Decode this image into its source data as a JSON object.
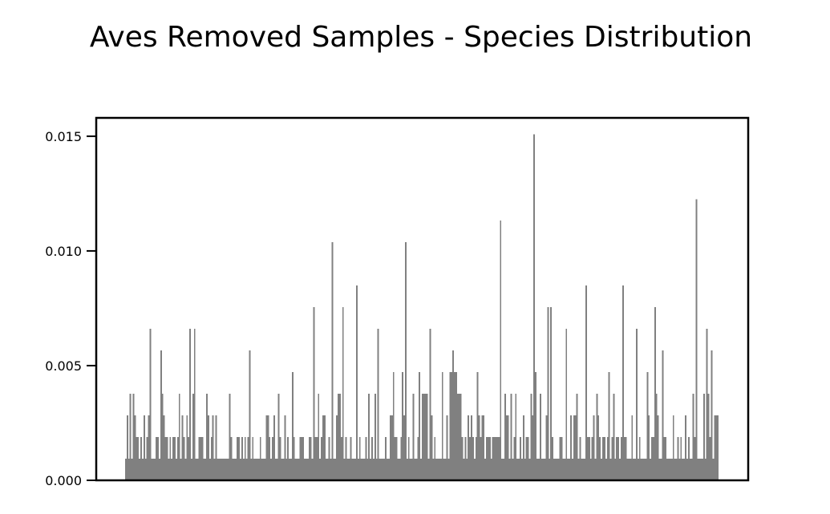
{
  "chart_data": {
    "type": "bar",
    "title": "Aves Removed Samples - Species Distribution",
    "xlabel": "",
    "ylabel": "",
    "ylim": [
      0,
      0.0158
    ],
    "yticks": [
      0.0,
      0.005,
      0.01,
      0.015
    ],
    "yticklabels": [
      "0.000",
      "0.005",
      "0.010",
      "0.015"
    ],
    "xticklabels": [],
    "grid": false,
    "legend": "none",
    "bar_color": "#808080",
    "values": [
      0.00094,
      0.00283,
      0.00094,
      0.00377,
      0.00094,
      0.00377,
      0.00283,
      0.00189,
      0.00189,
      0.00094,
      0.00189,
      0.00094,
      0.00283,
      0.00094,
      0.00189,
      0.00283,
      0.0066,
      0.00094,
      0.00094,
      0.00094,
      0.00189,
      0.00189,
      0.00094,
      0.00566,
      0.00377,
      0.00283,
      0.00189,
      0.00189,
      0.00094,
      0.00189,
      0.00094,
      0.00189,
      0.00189,
      0.00094,
      0.00189,
      0.00377,
      0.00094,
      0.00283,
      0.00189,
      0.00094,
      0.00283,
      0.00189,
      0.0066,
      0.00094,
      0.00377,
      0.0066,
      0.00094,
      0.00094,
      0.00189,
      0.00189,
      0.00189,
      0.00094,
      0.00094,
      0.00377,
      0.00283,
      0.00094,
      0.00189,
      0.00283,
      0.00094,
      0.00283,
      0.00094,
      0.00094,
      0.00094,
      0.00094,
      0.00094,
      0.00094,
      0.00094,
      0.00094,
      0.00377,
      0.00189,
      0.00094,
      0.00094,
      0.00094,
      0.00189,
      0.00189,
      0.00094,
      0.00189,
      0.00094,
      0.00189,
      0.00094,
      0.00189,
      0.00566,
      0.00094,
      0.00189,
      0.00094,
      0.00094,
      0.00094,
      0.00094,
      0.00189,
      0.00094,
      0.00094,
      0.00094,
      0.00283,
      0.00283,
      0.00189,
      0.00094,
      0.00189,
      0.00283,
      0.00094,
      0.00094,
      0.00377,
      0.00189,
      0.00094,
      0.00094,
      0.00283,
      0.00094,
      0.00189,
      0.00094,
      0.00094,
      0.00472,
      0.00189,
      0.00094,
      0.00094,
      0.00094,
      0.00189,
      0.00189,
      0.00189,
      0.00094,
      0.00094,
      0.00094,
      0.00189,
      0.00189,
      0.00094,
      0.00755,
      0.00189,
      0.00189,
      0.00377,
      0.00094,
      0.00189,
      0.00283,
      0.00283,
      0.00094,
      0.00094,
      0.00189,
      0.00094,
      0.01038,
      0.00094,
      0.00094,
      0.00283,
      0.00377,
      0.00377,
      0.00189,
      0.00755,
      0.00094,
      0.00189,
      0.00094,
      0.00094,
      0.00189,
      0.00094,
      0.00094,
      0.00094,
      0.00849,
      0.00094,
      0.00189,
      0.00094,
      0.00094,
      0.00094,
      0.00189,
      0.00094,
      0.00377,
      0.00094,
      0.00189,
      0.00094,
      0.00377,
      0.00094,
      0.0066,
      0.00094,
      0.00094,
      0.00094,
      0.00094,
      0.00189,
      0.00094,
      0.00094,
      0.00283,
      0.00283,
      0.00472,
      0.00189,
      0.00189,
      0.00094,
      0.00094,
      0.00189,
      0.00472,
      0.00283,
      0.01038,
      0.00094,
      0.00189,
      0.00094,
      0.00094,
      0.00377,
      0.00094,
      0.00094,
      0.00189,
      0.00472,
      0.00094,
      0.00377,
      0.00377,
      0.00377,
      0.00377,
      0.00094,
      0.0066,
      0.00283,
      0.00094,
      0.00189,
      0.00094,
      0.00094,
      0.00094,
      0.00094,
      0.00472,
      0.00094,
      0.00094,
      0.00283,
      0.00094,
      0.00472,
      0.00472,
      0.00566,
      0.00472,
      0.00472,
      0.00377,
      0.00377,
      0.00377,
      0.00189,
      0.00094,
      0.00189,
      0.00094,
      0.00283,
      0.00189,
      0.00283,
      0.00189,
      0.00094,
      0.00189,
      0.00472,
      0.00283,
      0.00189,
      0.00283,
      0.00283,
      0.00094,
      0.00189,
      0.00189,
      0.00189,
      0.00094,
      0.00189,
      0.00189,
      0.00189,
      0.00189,
      0.00189,
      0.01132,
      0.00094,
      0.00094,
      0.00377,
      0.00283,
      0.00283,
      0.00094,
      0.00377,
      0.00094,
      0.00189,
      0.00377,
      0.00094,
      0.00094,
      0.00189,
      0.00094,
      0.00283,
      0.00094,
      0.00189,
      0.00189,
      0.00094,
      0.00377,
      0.00283,
      0.01509,
      0.00472,
      0.00094,
      0.00094,
      0.00377,
      0.00094,
      0.00094,
      0.00094,
      0.00283,
      0.00755,
      0.00094,
      0.00755,
      0.00189,
      0.00094,
      0.00094,
      0.00094,
      0.00094,
      0.00189,
      0.00189,
      0.00094,
      0.00094,
      0.0066,
      0.00094,
      0.00094,
      0.00283,
      0.00094,
      0.00283,
      0.00283,
      0.00377,
      0.00094,
      0.00189,
      0.00094,
      0.00094,
      0.00094,
      0.00849,
      0.00189,
      0.00189,
      0.00094,
      0.00189,
      0.00283,
      0.00094,
      0.00377,
      0.00283,
      0.00189,
      0.00094,
      0.00189,
      0.00189,
      0.00094,
      0.00189,
      0.00472,
      0.00094,
      0.00189,
      0.00377,
      0.00094,
      0.00189,
      0.00189,
      0.00094,
      0.00189,
      0.00849,
      0.00189,
      0.00189,
      0.00094,
      0.00094,
      0.00094,
      0.00283,
      0.00094,
      0.00094,
      0.0066,
      0.00094,
      0.00189,
      0.00094,
      0.00094,
      0.00094,
      0.00094,
      0.00472,
      0.00283,
      0.00094,
      0.00189,
      0.00189,
      0.00755,
      0.00377,
      0.00283,
      0.00094,
      0.00094,
      0.00566,
      0.00189,
      0.00189,
      0.00094,
      0.00094,
      0.00094,
      0.00094,
      0.00283,
      0.00094,
      0.00094,
      0.00189,
      0.00094,
      0.00189,
      0.00094,
      0.00094,
      0.00283,
      0.00094,
      0.00189,
      0.00094,
      0.00094,
      0.00377,
      0.00189,
      0.01226,
      0.00094,
      0.00094,
      0.00094,
      0.00094,
      0.00377,
      0.00094,
      0.0066,
      0.00377,
      0.00189,
      0.00566,
      0.00094,
      0.00283,
      0.00283,
      0.00283
    ]
  }
}
